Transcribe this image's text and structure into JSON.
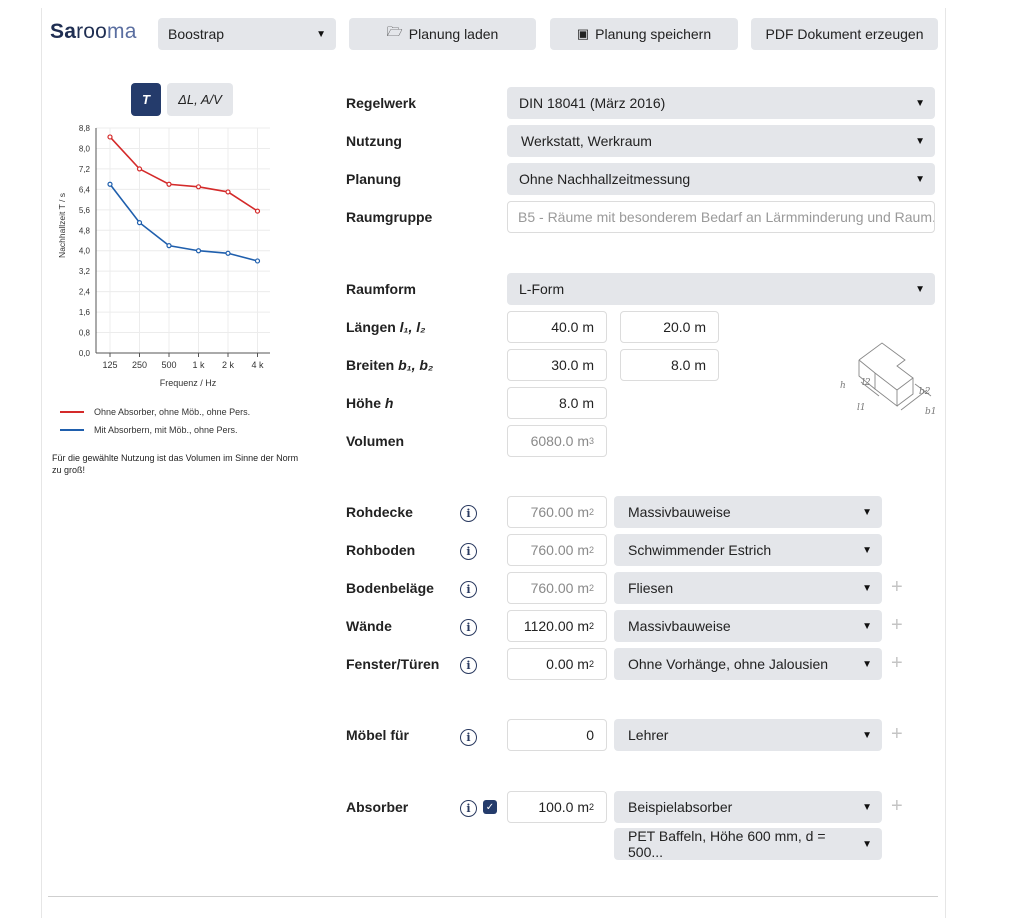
{
  "app": {
    "logo_bold": "Sa",
    "logo_mid": "roo",
    "logo_light": "ma",
    "theme_select": "Boostrap",
    "load_label": "Planung laden",
    "save_label": "Planung speichern",
    "pdf_label": "PDF Dokument erzeugen"
  },
  "chart_toggle": {
    "t_label": "T",
    "dl_label": "ΔL, A/V"
  },
  "chart_data": {
    "type": "line",
    "categories": [
      "125",
      "250",
      "500",
      "1 k",
      "2 k",
      "4 k"
    ],
    "series": [
      {
        "name": "Ohne Absorber, ohne Möb., ohne Pers.",
        "values": [
          8.45,
          7.2,
          6.6,
          6.5,
          6.3,
          5.55
        ],
        "color": "#d42a2a"
      },
      {
        "name": "Mit Absorbern, mit Möb., ohne Pers.",
        "values": [
          6.6,
          5.1,
          4.2,
          4.0,
          3.9,
          3.6
        ],
        "color": "#1f5fad"
      }
    ],
    "yticks": [
      "0,0",
      "0,8",
      "1,6",
      "2,4",
      "3,2",
      "4,0",
      "4,8",
      "5,6",
      "6,4",
      "7,2",
      "8,0",
      "8,8"
    ],
    "ylim": [
      0,
      8.8
    ],
    "xlabel": "Frequenz / Hz",
    "ylabel": "Nachhallzeit T / s",
    "grid": true
  },
  "note": "Für die gewählte Nutzung ist das Volumen im Sinne der Norm zu groß!",
  "form": {
    "regelwerk_label": "Regelwerk",
    "regelwerk_value": "DIN 18041 (März 2016)",
    "nutzung_label": "Nutzung",
    "nutzung_value": "Werkstatt, Werkraum",
    "planung_label": "Planung",
    "planung_value": "Ohne Nachhallzeitmessung",
    "raumgruppe_label": "Raumgruppe",
    "raumgruppe_value": "B5 - Räume mit besonderem Bedarf an Lärmminderung und Raum...",
    "raumform_label": "Raumform",
    "raumform_value": "L-Form",
    "laengen_label": "Längen",
    "laengen_vars": "l₁, l₂",
    "l1": "40.0 m",
    "l2": "20.0 m",
    "breiten_label": "Breiten",
    "breiten_vars": "b₁, b₂",
    "b1": "30.0 m",
    "b2": "8.0 m",
    "hoehe_label": "Höhe",
    "hoehe_var": "h",
    "h": "8.0 m",
    "volumen_label": "Volumen",
    "volumen_value": "6080.0 m",
    "volumen_unit_sup": "3"
  },
  "surfaces": [
    {
      "label": "Rohdecke",
      "area": "760.00 m",
      "material": "Massivbauweise",
      "plus": false,
      "ro": true
    },
    {
      "label": "Rohboden",
      "area": "760.00 m",
      "material": "Schwimmender Estrich",
      "plus": false,
      "ro": true
    },
    {
      "label": "Bodenbeläge",
      "area": "760.00 m",
      "material": "Fliesen",
      "plus": true,
      "ro": true
    },
    {
      "label": "Wände",
      "area": "1120.00 m",
      "material": "Massivbauweise",
      "plus": true,
      "ro": false
    },
    {
      "label": "Fenster/Türen",
      "area": "0.00 m",
      "material": "Ohne Vorhänge, ohne Jalousien",
      "plus": true,
      "ro": false
    }
  ],
  "moebel": {
    "label": "Möbel für",
    "count": "0",
    "type": "Lehrer"
  },
  "absorber": {
    "label": "Absorber",
    "area": "100.0 m",
    "product": "Beispielabsorber",
    "variant": "PET Baffeln, Höhe 600 mm, d = 500..."
  },
  "diagram": {
    "h": "h",
    "l1": "l1",
    "l2": "l2",
    "b1": "b1",
    "b2": "b2"
  },
  "area_sup": "2",
  "icons": {
    "info": "info-circle-icon",
    "caret": "caret-down-icon",
    "plus": "plus-icon",
    "check": "checkbox-checked-icon",
    "folder": "folder-open-icon",
    "save": "floppy-disk-icon"
  }
}
